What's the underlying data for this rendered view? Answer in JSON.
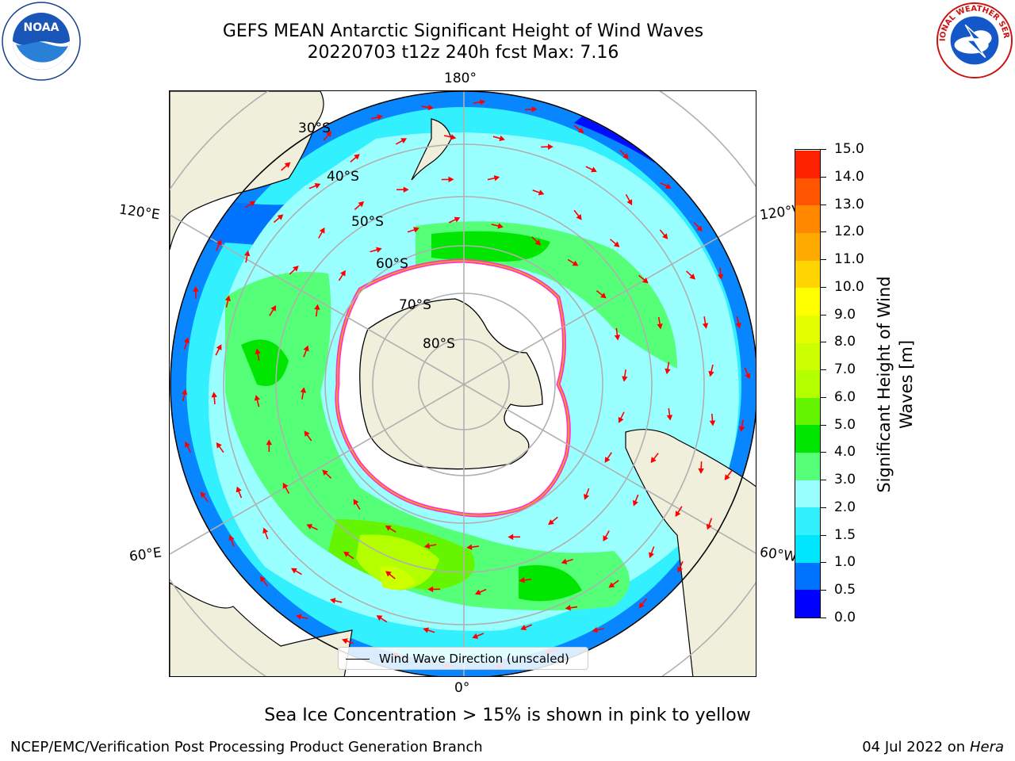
{
  "header": {
    "title_line1": "GEFS MEAN Antarctic Significant Height of Wind Waves",
    "title_line2": "20220703 t12z 240h fcst   Max: 7.16"
  },
  "logos": {
    "noaa_text": "NOAA",
    "noaa_ring": "NATIONAL OCEANIC AND ATMOSPHERIC ADMINISTRATION · U.S. DEPARTMENT OF COMMERCE",
    "nws_ring": "NATIONAL WEATHER SERVICE"
  },
  "map": {
    "projection": "south-polar-stereographic",
    "longitude_labels": {
      "top": "180°",
      "left_upper": "120°E",
      "right_upper": "120°W",
      "left_lower": "60°E",
      "right_lower": "60°W",
      "bottom": "0°"
    },
    "latitude_labels": [
      "30°S",
      "40°S",
      "50°S",
      "60°S",
      "70°S",
      "80°S"
    ],
    "land_color": "#efefdc",
    "sea_ice_color": "#ffffff",
    "arrow_color": "#ff0000"
  },
  "colorbar": {
    "label": "Significant Height of Wind Waves [m]",
    "label_line1": "Significant Height of Wind",
    "label_line2": "Waves [m]",
    "ticks": [
      "0.0",
      "0.5",
      "1.0",
      "1.5",
      "2.0",
      "3.0",
      "4.0",
      "5.0",
      "6.0",
      "7.0",
      "8.0",
      "9.0",
      "10.0",
      "11.0",
      "12.0",
      "13.0",
      "14.0",
      "15.0"
    ],
    "colors": [
      "#0000ff",
      "#0073ff",
      "#00e6ff",
      "#33f0ff",
      "#99ffff",
      "#55ff77",
      "#00e600",
      "#66f500",
      "#b3ff00",
      "#ccff00",
      "#e6ff00",
      "#ffff00",
      "#ffd400",
      "#ffaa00",
      "#ff8800",
      "#ff5500",
      "#ff2200"
    ]
  },
  "legend": {
    "label": "Wind Wave Direction (unscaled)"
  },
  "footer": {
    "note": "Sea Ice Concentration > 15% is shown in pink to yellow",
    "credit": "NCEP/EMC/Verification Post Processing Product Generation Branch",
    "date_prefix": "04 Jul 2022 on ",
    "date_host": "Hera"
  }
}
